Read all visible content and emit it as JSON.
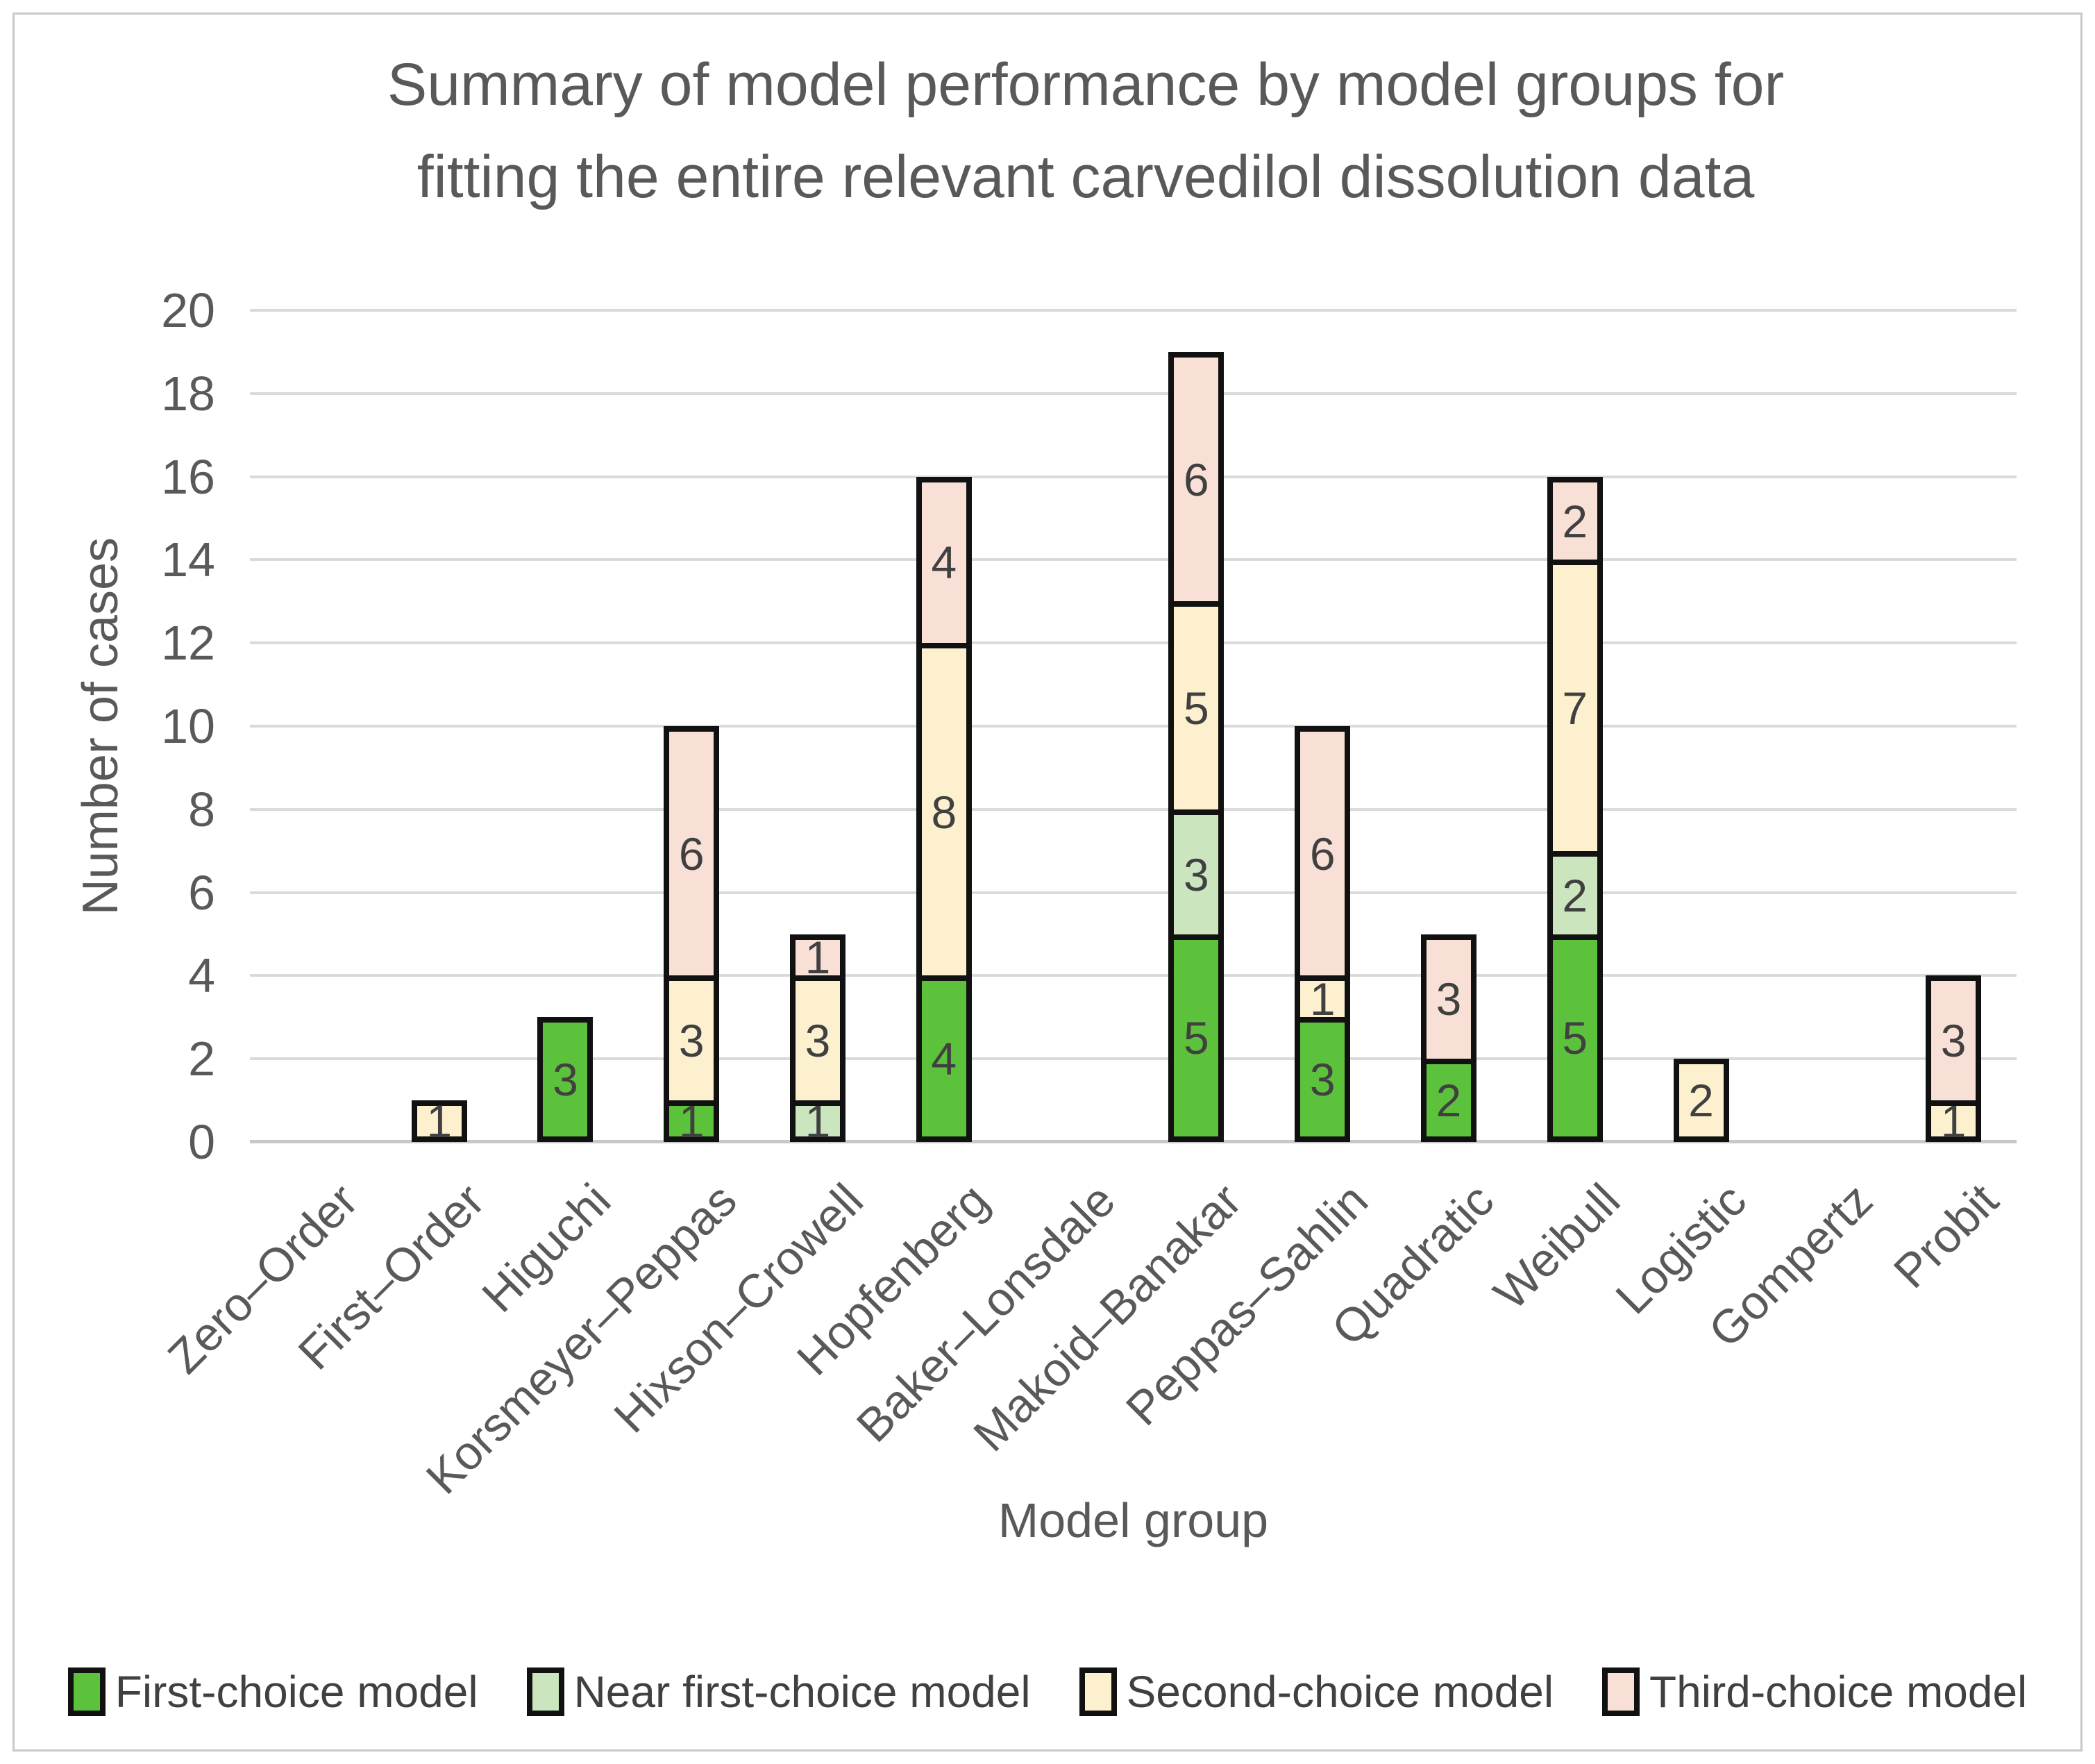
{
  "figure": {
    "title_line1": "Summary of model performance by model groups for",
    "title_line2": "fitting the entire relevant carvedilol dissolution data"
  },
  "chart_data": {
    "type": "bar",
    "stacked": true,
    "title": "Summary of model performance by model groups for fitting the entire relevant carvedilol dissolution data",
    "xlabel": "Model group",
    "ylabel": "Number of cases",
    "ylim": [
      0,
      20
    ],
    "ytick_step": 2,
    "grid": "horizontal",
    "legend_position": "bottom",
    "categories": [
      "Zero–Order",
      "First–Order",
      "Higuchi",
      "Korsmeyer–Peppas",
      "Hixson–Crowell",
      "Hopfenberg",
      "Baker–Lonsdale",
      "Makoid–Banakar",
      "Peppas–Sahlin",
      "Quadratic",
      "Weibull",
      "Logistic",
      "Gompertz",
      "Probit"
    ],
    "series": [
      {
        "name": "First-choice model",
        "color": "#5cc23c",
        "values": [
          0,
          0,
          3,
          1,
          0,
          4,
          0,
          5,
          3,
          2,
          5,
          0,
          0,
          0
        ]
      },
      {
        "name": "Near first-choice model",
        "color": "#cbe6be",
        "values": [
          0,
          0,
          0,
          0,
          1,
          0,
          0,
          3,
          0,
          0,
          2,
          0,
          0,
          0
        ]
      },
      {
        "name": "Second-choice model",
        "color": "#fcf0ce",
        "values": [
          0,
          1,
          0,
          3,
          3,
          8,
          0,
          5,
          1,
          0,
          7,
          2,
          0,
          1
        ]
      },
      {
        "name": "Third-choice model",
        "color": "#f9e0d6",
        "values": [
          0,
          0,
          0,
          6,
          1,
          4,
          0,
          6,
          6,
          3,
          2,
          0,
          0,
          3
        ]
      }
    ],
    "bar_totals": [
      0,
      1,
      3,
      10,
      5,
      16,
      0,
      19,
      10,
      5,
      16,
      2,
      0,
      4
    ],
    "colors": {
      "segment_border": "#111111",
      "gridline": "#dadada",
      "axis_line": "#c8c8c8",
      "text": "#595959",
      "data_label": "#404040",
      "figure_border": "#c9c9c9"
    }
  }
}
